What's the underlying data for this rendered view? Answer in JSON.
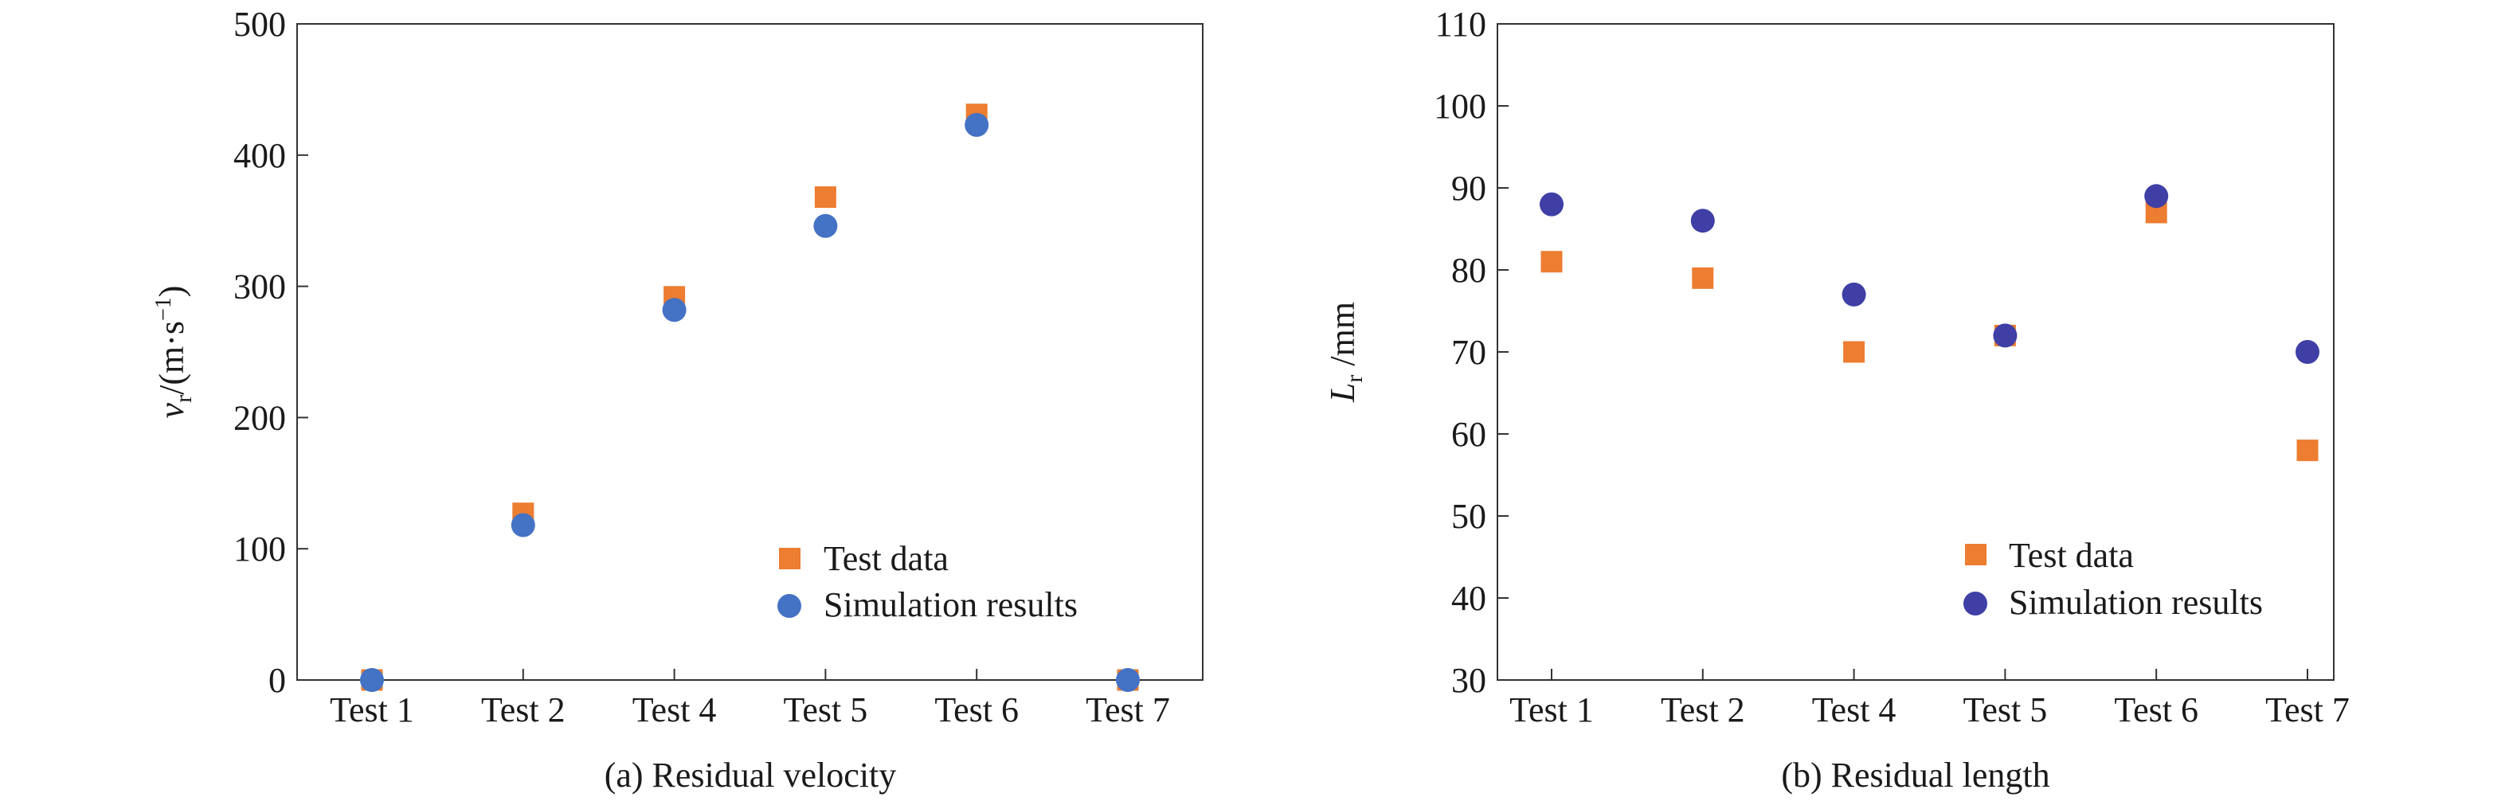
{
  "chart_data": [
    {
      "type": "scatter",
      "caption": "(a) Residual velocity",
      "ylabel_main": "v",
      "ylabel_sub": "r",
      "ylabel_unit_pre": "/(m·s",
      "ylabel_unit_sup": "−1",
      "ylabel_unit_post": ")",
      "categories": [
        "Test 1",
        "Test 2",
        "Test 4",
        "Test 5",
        "Test 6",
        "Test 7"
      ],
      "ylim": [
        0,
        500
      ],
      "yticks": [
        0,
        100,
        200,
        300,
        400,
        500
      ],
      "grid": false,
      "legend_position": "bottom-right",
      "series": [
        {
          "name": "Test data",
          "marker": "square",
          "color": "#ed7d31",
          "values": [
            0,
            127,
            292,
            368,
            431,
            0
          ]
        },
        {
          "name": "Simulation results",
          "marker": "circle",
          "color": "#4472c4",
          "values": [
            0,
            118,
            282,
            346,
            423,
            0
          ]
        }
      ]
    },
    {
      "type": "scatter",
      "caption": "(b) Residual length",
      "ylabel_main": "L",
      "ylabel_sub": "r",
      "ylabel_unit_pre": " /mm",
      "ylabel_unit_sup": "",
      "ylabel_unit_post": "",
      "categories": [
        "Test 1",
        "Test 2",
        "Test 4",
        "Test 5",
        "Test 6",
        "Test 7"
      ],
      "ylim": [
        30,
        110
      ],
      "yticks": [
        30,
        40,
        50,
        60,
        70,
        80,
        90,
        100,
        110
      ],
      "grid": false,
      "legend_position": "bottom-right",
      "series": [
        {
          "name": "Test data",
          "marker": "square",
          "color": "#ed7d31",
          "values": [
            81,
            79,
            70,
            72,
            87,
            58
          ]
        },
        {
          "name": "Simulation results",
          "marker": "circle",
          "color": "#3f3fa6",
          "values": [
            88,
            86,
            77,
            72,
            89,
            70
          ]
        }
      ]
    }
  ]
}
